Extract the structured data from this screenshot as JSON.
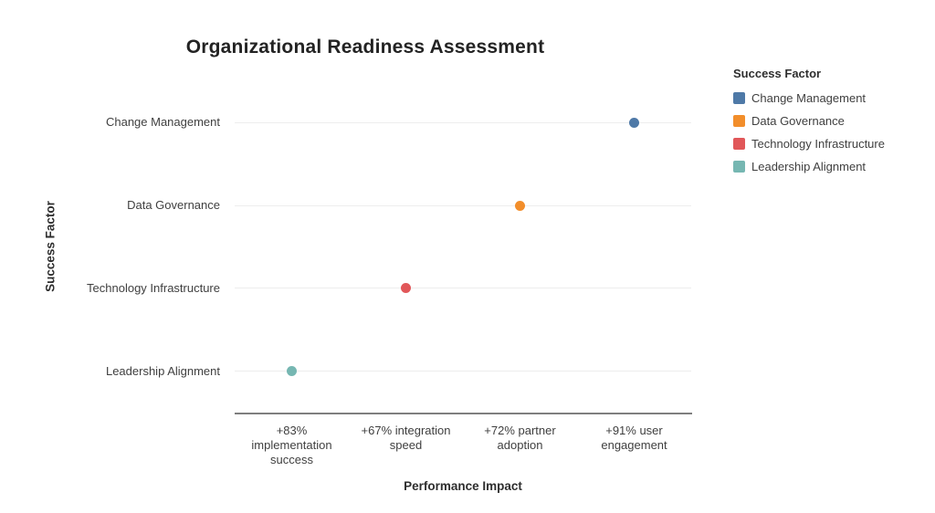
{
  "chart_data": {
    "type": "scatter",
    "title": "Organizational Readiness Assessment",
    "xlabel": "Performance Impact",
    "ylabel": "Success Factor",
    "grid": true,
    "categories": [
      "Change Management",
      "Data Governance",
      "Technology Infrastructure",
      "Leadership Alignment"
    ],
    "x_categories": [
      {
        "label": "+83% implementation success",
        "lines": [
          "+83%",
          "implementation",
          "success"
        ]
      },
      {
        "label": "+67% integration speed",
        "lines": [
          "+67% integration",
          "speed"
        ]
      },
      {
        "label": "+72% partner adoption",
        "lines": [
          "+72% partner",
          "adoption"
        ]
      },
      {
        "label": "+91% user engagement",
        "lines": [
          "+91% user",
          "engagement"
        ]
      }
    ],
    "points": [
      {
        "category": "Change Management",
        "x_label": "+91% user engagement",
        "value_pct": 91,
        "color": "#4E79A7"
      },
      {
        "category": "Data Governance",
        "x_label": "+72% partner adoption",
        "value_pct": 72,
        "color": "#F28E2B"
      },
      {
        "category": "Technology Infrastructure",
        "x_label": "+67% integration speed",
        "value_pct": 67,
        "color": "#E15759"
      },
      {
        "category": "Leadership Alignment",
        "x_label": "+83% implementation success",
        "value_pct": 83,
        "color": "#76B7B2"
      }
    ],
    "legend": {
      "title": "Success Factor",
      "position": "right",
      "items": [
        {
          "label": "Change Management",
          "color": "#4E79A7"
        },
        {
          "label": "Data Governance",
          "color": "#F28E2B"
        },
        {
          "label": "Technology Infrastructure",
          "color": "#E15759"
        },
        {
          "label": "Leadership Alignment",
          "color": "#76B7B2"
        }
      ]
    },
    "colors": {
      "gridline": "#ededed",
      "axis_line": "#7e7e7e",
      "background": "#ffffff"
    }
  }
}
